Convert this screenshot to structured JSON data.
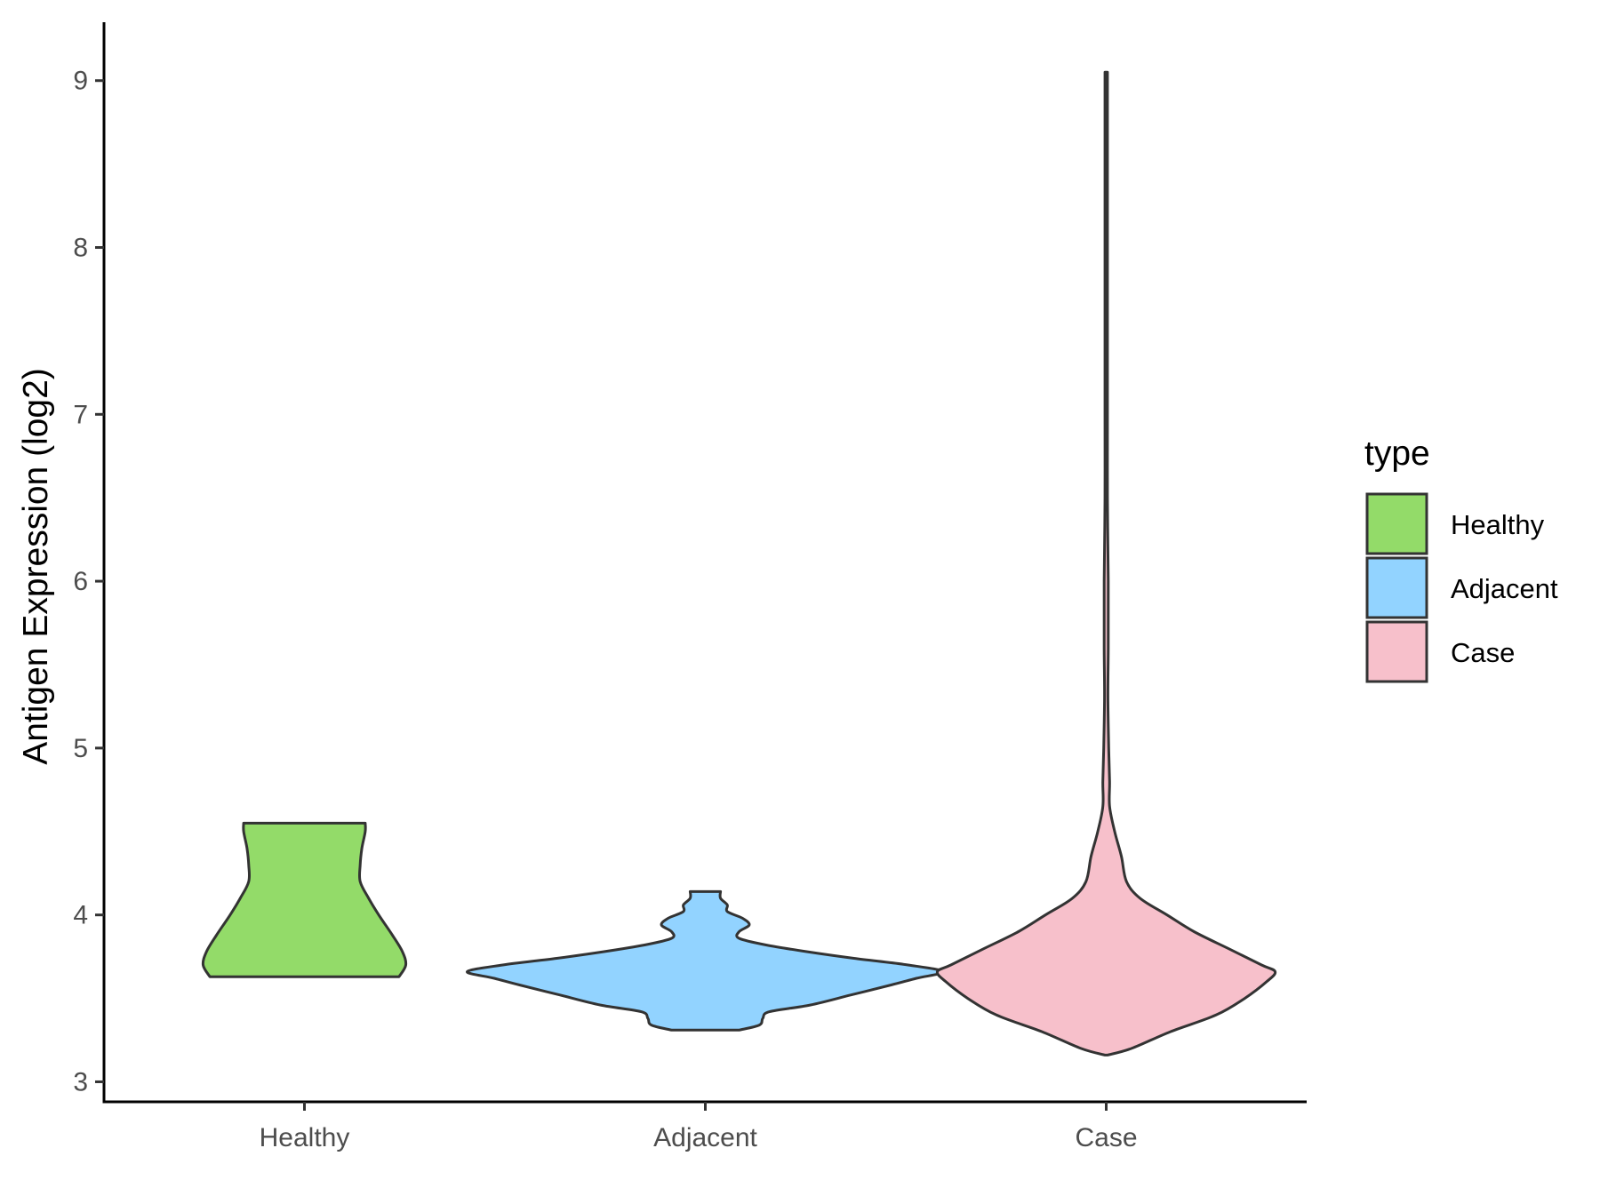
{
  "chart_data": {
    "type": "violin",
    "ylabel": "Antigen Expression (log2)",
    "xlabel": "",
    "categories": [
      "Healthy",
      "Adjacent",
      "Case"
    ],
    "ylim": [
      2.88,
      9.35
    ],
    "yticks": [
      3,
      4,
      5,
      6,
      7,
      8,
      9
    ],
    "grid": false,
    "legend": {
      "title": "type",
      "position": "right",
      "entries": [
        "Healthy",
        "Adjacent",
        "Case"
      ]
    },
    "series": [
      {
        "category": "Healthy",
        "color": "#93DB69",
        "min": 3.63,
        "max": 4.55,
        "density_profile": [
          [
            3.63,
            0.56
          ],
          [
            3.7,
            0.6
          ],
          [
            3.78,
            0.58
          ],
          [
            3.88,
            0.52
          ],
          [
            4.0,
            0.44
          ],
          [
            4.1,
            0.38
          ],
          [
            4.2,
            0.33
          ],
          [
            4.3,
            0.33
          ],
          [
            4.4,
            0.34
          ],
          [
            4.5,
            0.36
          ],
          [
            4.55,
            0.36
          ]
        ]
      },
      {
        "category": "Adjacent",
        "color": "#92D3FF",
        "min": 3.31,
        "max": 4.14,
        "density_profile": [
          [
            3.31,
            0.2
          ],
          [
            3.34,
            0.32
          ],
          [
            3.38,
            0.34
          ],
          [
            3.42,
            0.38
          ],
          [
            3.46,
            0.62
          ],
          [
            3.52,
            0.86
          ],
          [
            3.58,
            1.1
          ],
          [
            3.62,
            1.25
          ],
          [
            3.66,
            1.41
          ],
          [
            3.7,
            1.2
          ],
          [
            3.74,
            0.88
          ],
          [
            3.78,
            0.6
          ],
          [
            3.82,
            0.36
          ],
          [
            3.86,
            0.2
          ],
          [
            3.9,
            0.2
          ],
          [
            3.94,
            0.26
          ],
          [
            3.98,
            0.22
          ],
          [
            4.02,
            0.13
          ],
          [
            4.06,
            0.13
          ],
          [
            4.1,
            0.09
          ],
          [
            4.14,
            0.09
          ]
        ]
      },
      {
        "category": "Case",
        "color": "#F7C0CB",
        "min": 3.16,
        "max": 9.05,
        "density_profile": [
          [
            3.16,
            0.0
          ],
          [
            3.2,
            0.15
          ],
          [
            3.3,
            0.38
          ],
          [
            3.4,
            0.65
          ],
          [
            3.5,
            0.82
          ],
          [
            3.6,
            0.95
          ],
          [
            3.66,
            1.0
          ],
          [
            3.7,
            0.92
          ],
          [
            3.8,
            0.72
          ],
          [
            3.9,
            0.52
          ],
          [
            4.0,
            0.36
          ],
          [
            4.1,
            0.2
          ],
          [
            4.2,
            0.12
          ],
          [
            4.35,
            0.09
          ],
          [
            4.5,
            0.05
          ],
          [
            4.65,
            0.02
          ],
          [
            4.8,
            0.02
          ],
          [
            5.0,
            0.015
          ],
          [
            5.3,
            0.01
          ],
          [
            5.6,
            0.012
          ],
          [
            6.0,
            0.012
          ],
          [
            6.5,
            0.004
          ],
          [
            7.0,
            0.003
          ],
          [
            7.2,
            0.003
          ],
          [
            8.0,
            0.002
          ],
          [
            9.05,
            0.002
          ]
        ]
      }
    ]
  }
}
